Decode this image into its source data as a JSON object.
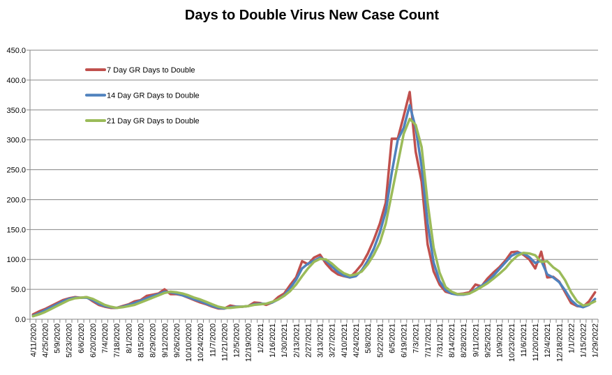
{
  "chart_data": {
    "type": "line",
    "title": "Days to Double Virus New Case Count",
    "xlabel": "",
    "ylabel": "",
    "ylim": [
      0,
      450
    ],
    "yticks": [
      "0.0",
      "50.0",
      "100.0",
      "150.0",
      "200.0",
      "250.0",
      "300.0",
      "350.0",
      "400.0",
      "450.0"
    ],
    "grid": true,
    "legend_position": "top-left",
    "x_tick_labels": [
      "4/11/2020",
      "4/25/2020",
      "5/9/2020",
      "5/23/2020",
      "6/6/2020",
      "6/20/2020",
      "7/4/2020",
      "7/18/2020",
      "8/1/2020",
      "8/15/2020",
      "8/29/2020",
      "9/12/2020",
      "9/26/2020",
      "10/10/2020",
      "10/24/2020",
      "11/7/2020",
      "11/21/2020",
      "12/5/2020",
      "12/19/2020",
      "1/2/2021",
      "1/16/2021",
      "1/30/2021",
      "2/13/2021",
      "2/27/2021",
      "3/13/2021",
      "3/27/2021",
      "4/10/2021",
      "4/24/2021",
      "5/8/2021",
      "5/22/2021",
      "6/5/2021",
      "6/19/2021",
      "7/3/2021",
      "7/17/2021",
      "7/31/2021",
      "8/14/2021",
      "8/28/2021",
      "9/11/2021",
      "9/25/2021",
      "10/9/2021",
      "10/23/2021",
      "11/6/2021",
      "11/20/2021",
      "12/4/2021",
      "12/18/2021",
      "1/1/2022",
      "1/15/2022",
      "1/29/2022"
    ],
    "x_interval": "weekly, labeled every 2 weeks, from 4/11/2020 to 1/29/2022",
    "series": [
      {
        "name": "7 Day GR Days to Double",
        "color": "#C0504D",
        "values": [
          8,
          13,
          17,
          22,
          27,
          32,
          35,
          37,
          36,
          37,
          30,
          24,
          21,
          19,
          19,
          22,
          25,
          30,
          32,
          39,
          41,
          43,
          50,
          42,
          42,
          40,
          36,
          32,
          28,
          25,
          21,
          18,
          18,
          23,
          21,
          21,
          22,
          28,
          27,
          24,
          28,
          37,
          43,
          57,
          70,
          97,
          92,
          103,
          108,
          93,
          82,
          75,
          72,
          70,
          80,
          92,
          110,
          133,
          160,
          195,
          302,
          302,
          340,
          380,
          280,
          230,
          125,
          80,
          58,
          46,
          43,
          42,
          43,
          45,
          58,
          55,
          68,
          78,
          87,
          98,
          112,
          113,
          108,
          100,
          85,
          113,
          70,
          71,
          63,
          45,
          27,
          22,
          21,
          30,
          45
        ]
      },
      {
        "name": "14 Day GR Days to Double",
        "color": "#4F81BD",
        "values": [
          6,
          10,
          15,
          20,
          25,
          30,
          34,
          36,
          36,
          36,
          32,
          26,
          22,
          20,
          19,
          21,
          24,
          27,
          31,
          35,
          39,
          42,
          46,
          45,
          43,
          40,
          37,
          33,
          30,
          26,
          22,
          19,
          18,
          20,
          21,
          21,
          22,
          25,
          26,
          26,
          28,
          33,
          40,
          52,
          66,
          85,
          93,
          98,
          103,
          98,
          88,
          79,
          73,
          70,
          72,
          82,
          98,
          118,
          145,
          180,
          245,
          300,
          320,
          358,
          320,
          255,
          160,
          95,
          64,
          49,
          43,
          41,
          41,
          43,
          50,
          56,
          63,
          73,
          84,
          95,
          106,
          111,
          110,
          104,
          94,
          98,
          75,
          70,
          62,
          48,
          32,
          23,
          20,
          24,
          34
        ]
      },
      {
        "name": "21 Day GR Days to Double",
        "color": "#9BBB59",
        "values": [
          5,
          8,
          12,
          17,
          22,
          27,
          32,
          35,
          36,
          37,
          34,
          29,
          24,
          21,
          19,
          20,
          22,
          24,
          28,
          32,
          36,
          40,
          44,
          46,
          45,
          43,
          40,
          36,
          33,
          29,
          25,
          21,
          19,
          19,
          20,
          21,
          22,
          24,
          25,
          26,
          29,
          33,
          39,
          47,
          58,
          72,
          85,
          96,
          101,
          100,
          93,
          84,
          77,
          73,
          75,
          80,
          92,
          108,
          128,
          160,
          210,
          260,
          310,
          335,
          325,
          288,
          195,
          120,
          78,
          54,
          46,
          42,
          42,
          43,
          48,
          54,
          60,
          68,
          76,
          85,
          97,
          106,
          111,
          110,
          107,
          96,
          97,
          87,
          80,
          65,
          45,
          30,
          23,
          25,
          30
        ]
      }
    ]
  }
}
